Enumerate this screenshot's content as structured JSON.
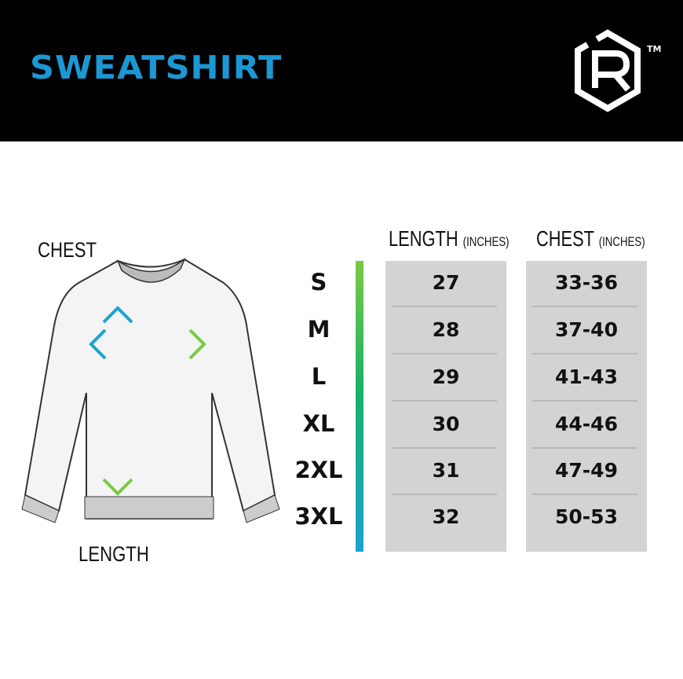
{
  "header": {
    "title": "SWEATSHIRT",
    "logo_text": "R",
    "trademark": "TM"
  },
  "diagram": {
    "chest_label": "CHEST",
    "length_label": "LENGTH"
  },
  "table": {
    "columns": [
      {
        "label": "LENGTH",
        "unit": "(INCHES)"
      },
      {
        "label": "CHEST",
        "unit": "(INCHES)"
      }
    ],
    "rows": [
      {
        "size": "S",
        "length": "27",
        "chest": "33-36"
      },
      {
        "size": "M",
        "length": "28",
        "chest": "37-40"
      },
      {
        "size": "L",
        "length": "29",
        "chest": "41-43"
      },
      {
        "size": "XL",
        "length": "30",
        "chest": "44-46"
      },
      {
        "size": "2XL",
        "length": "31",
        "chest": "47-49"
      },
      {
        "size": "3XL",
        "length": "32",
        "chest": "50-53"
      }
    ]
  },
  "colors": {
    "title": "#1b98d4",
    "gradient_top": "#7ac943",
    "gradient_bottom": "#1aa3d0",
    "cell_bg": "#d3d3d3"
  }
}
